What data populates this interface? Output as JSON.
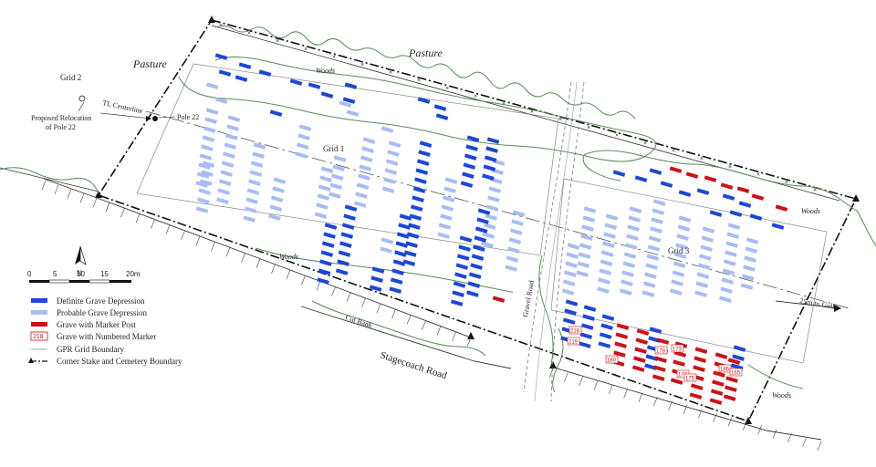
{
  "labels": {
    "pasture_west": "Pasture",
    "pasture_north": "Pasture",
    "woods_north": "Woods",
    "woods_south": "Woods",
    "woods_east": "Woods",
    "woods_southeast": "Woods",
    "grid_2": "Grid 2",
    "grid_1": "Grid 1",
    "grid_3": "Grid 3",
    "tl_centerline": "TL Centerline",
    "pole_22": "Pole 22",
    "relocation_line1": "Proposed Relocation",
    "relocation_line2": "of Pole 22",
    "cut_bank": "Cut Bank",
    "stagecoach_road": "Stagecoach Road",
    "gravel_road": "Gravel Road",
    "gully": "25m to Gully"
  },
  "north_arrow": {
    "letter": "N"
  },
  "scale_bar": {
    "ticks": [
      "0",
      "5",
      "10",
      "15",
      "20m"
    ]
  },
  "legend": [
    {
      "key": "definite",
      "label": "Definite Grave Depression",
      "color": "#1d47d6"
    },
    {
      "key": "probable",
      "label": "Probable Grave Depression",
      "color": "#a9bdf0"
    },
    {
      "key": "marker_post",
      "label": "Grave with Marker Post",
      "color": "#c8141a"
    },
    {
      "key": "numbered",
      "label": "Grave with Numbered Marker",
      "sample": "218",
      "color": "#c8141a"
    },
    {
      "key": "gpr",
      "label": "GPR Grid Boundary",
      "color": "#888888"
    },
    {
      "key": "boundary",
      "label": "Corner Stake and Cemetery Boundary",
      "color": "#111111"
    }
  ],
  "grave_markers": [
    "218",
    "219",
    "178",
    "173",
    "180",
    "172",
    "175",
    "186",
    "165"
  ],
  "colors": {
    "definite": "#1d47d6",
    "probable": "#a9bdf0",
    "marker_post": "#c8141a",
    "vegetation": "#5a8a5a",
    "boundary": "#111111",
    "gpr": "#888888"
  }
}
